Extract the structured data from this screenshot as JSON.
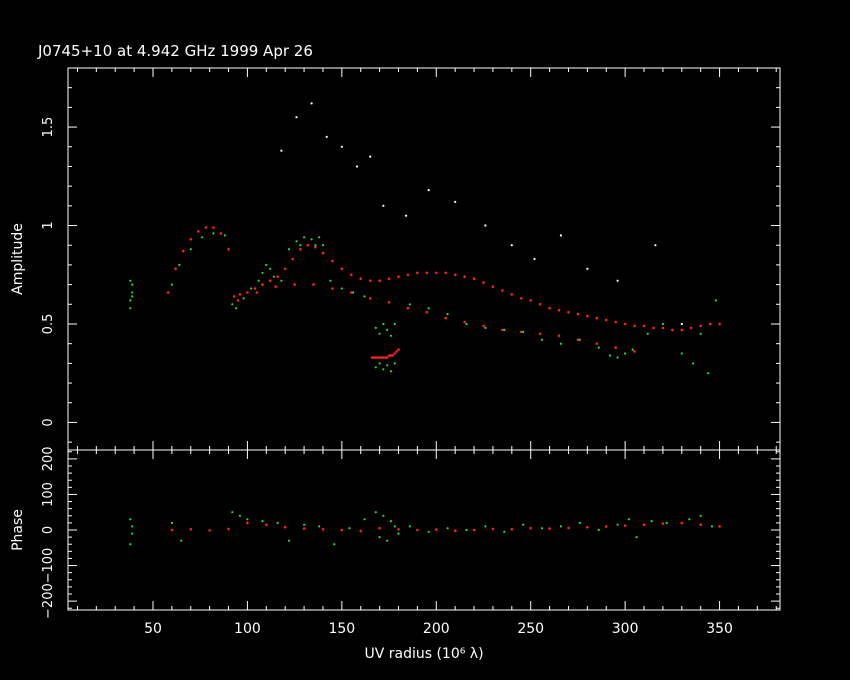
{
  "title": "J0745+10 at 4.942 GHz 1999 Apr 26",
  "colors": {
    "background": "#000000",
    "axes": "#ffffff",
    "model": "#ff2020",
    "data": "#20e040"
  },
  "chart_data": [
    {
      "type": "scatter",
      "panel": "amplitude",
      "ylabel": "Amplitude",
      "xlim": [
        5,
        382
      ],
      "ylim": [
        -0.14,
        1.8
      ],
      "x_ticks": [
        50,
        100,
        150,
        200,
        250,
        300,
        350
      ],
      "y_ticks": [
        0,
        0.5,
        1,
        1.5
      ],
      "y_tick_labels": [
        "0",
        "0.5",
        "1",
        "1.5"
      ],
      "series": [
        {
          "role": "model",
          "color": "#ff2020",
          "x": [
            58,
            62,
            66,
            70,
            74,
            78,
            82,
            86,
            90,
            93,
            96,
            100,
            104,
            108,
            112,
            116,
            120,
            124,
            128,
            132,
            136,
            140,
            145,
            150,
            155,
            160,
            165,
            170,
            175,
            180,
            185,
            190,
            195,
            200,
            205,
            210,
            215,
            220,
            225,
            230,
            235,
            240,
            245,
            250,
            255,
            260,
            265,
            270,
            275,
            280,
            285,
            290,
            295,
            300,
            305,
            310,
            315,
            320,
            325,
            330,
            335,
            340,
            345,
            350
          ],
          "y": [
            0.66,
            0.78,
            0.87,
            0.93,
            0.97,
            0.99,
            0.99,
            0.96,
            0.88,
            0.64,
            0.65,
            0.66,
            0.68,
            0.7,
            0.72,
            0.74,
            0.78,
            0.83,
            0.88,
            0.9,
            0.89,
            0.86,
            0.82,
            0.78,
            0.75,
            0.73,
            0.72,
            0.72,
            0.73,
            0.74,
            0.75,
            0.76,
            0.76,
            0.76,
            0.76,
            0.75,
            0.74,
            0.73,
            0.71,
            0.69,
            0.67,
            0.65,
            0.63,
            0.62,
            0.6,
            0.58,
            0.57,
            0.56,
            0.55,
            0.54,
            0.53,
            0.52,
            0.51,
            0.5,
            0.49,
            0.49,
            0.48,
            0.48,
            0.47,
            0.47,
            0.48,
            0.49,
            0.5,
            0.5
          ]
        },
        {
          "role": "model-lower",
          "color": "#ff2020",
          "x": [
            95,
            105,
            115,
            125,
            135,
            145,
            155,
            165,
            175,
            185,
            195,
            205,
            215,
            225,
            235,
            245,
            255,
            265,
            275,
            285,
            295,
            305
          ],
          "y": [
            0.62,
            0.66,
            0.69,
            0.7,
            0.7,
            0.68,
            0.66,
            0.63,
            0.61,
            0.58,
            0.56,
            0.53,
            0.51,
            0.49,
            0.47,
            0.46,
            0.45,
            0.44,
            0.42,
            0.4,
            0.38,
            0.36
          ]
        },
        {
          "role": "model-cluster",
          "color": "#ff2020",
          "x": [
            166,
            167,
            168,
            169,
            170,
            171,
            172,
            173,
            174,
            175,
            176,
            177,
            178,
            179,
            180
          ],
          "y": [
            0.33,
            0.33,
            0.33,
            0.33,
            0.33,
            0.33,
            0.33,
            0.33,
            0.33,
            0.34,
            0.34,
            0.34,
            0.35,
            0.36,
            0.37
          ]
        },
        {
          "role": "data",
          "color": "#20e040",
          "x": [
            38,
            38,
            39,
            39,
            38,
            39,
            60,
            64,
            70,
            76,
            82,
            88,
            92,
            94,
            98,
            102,
            106,
            108,
            110,
            112,
            114,
            118,
            122,
            126,
            128,
            130,
            134,
            136,
            138,
            140,
            144,
            150,
            156,
            162,
            168,
            170,
            172,
            174,
            176,
            178,
            168,
            170,
            172,
            174,
            176,
            178,
            186,
            196,
            206,
            216,
            226,
            236,
            246,
            256,
            266,
            276,
            286,
            292,
            296,
            300,
            304,
            312,
            320,
            330,
            336,
            340,
            344,
            348
          ],
          "y": [
            0.58,
            0.62,
            0.66,
            0.7,
            0.72,
            0.64,
            0.7,
            0.8,
            0.88,
            0.94,
            0.96,
            0.95,
            0.6,
            0.58,
            0.63,
            0.68,
            0.72,
            0.76,
            0.8,
            0.78,
            0.74,
            0.72,
            0.88,
            0.92,
            0.9,
            0.94,
            0.93,
            0.9,
            0.94,
            0.9,
            0.72,
            0.68,
            0.66,
            0.64,
            0.48,
            0.45,
            0.5,
            0.47,
            0.44,
            0.5,
            0.28,
            0.3,
            0.27,
            0.29,
            0.26,
            0.3,
            0.6,
            0.58,
            0.55,
            0.5,
            0.48,
            0.47,
            0.46,
            0.42,
            0.4,
            0.42,
            0.38,
            0.34,
            0.33,
            0.35,
            0.37,
            0.45,
            0.5,
            0.35,
            0.3,
            0.45,
            0.25,
            0.62
          ]
        },
        {
          "role": "outliers",
          "color": "#ffffff",
          "x": [
            118,
            126,
            134,
            142,
            150,
            158,
            165,
            172,
            184,
            196,
            210,
            226,
            240,
            252,
            266,
            280,
            296,
            316,
            330
          ],
          "y": [
            1.38,
            1.55,
            1.62,
            1.45,
            1.4,
            1.3,
            1.35,
            1.1,
            1.05,
            1.18,
            1.12,
            1.0,
            0.9,
            0.83,
            0.95,
            0.78,
            0.72,
            0.9,
            0.5
          ]
        }
      ]
    },
    {
      "type": "scatter",
      "panel": "phase",
      "xlabel": "UV radius  (10⁶ λ)",
      "ylabel": "Phase",
      "xlim": [
        5,
        382
      ],
      "ylim": [
        -225,
        225
      ],
      "x_ticks": [
        50,
        100,
        150,
        200,
        250,
        300,
        350
      ],
      "x_tick_labels": [
        "50",
        "100",
        "150",
        "200",
        "250",
        "300",
        "350"
      ],
      "y_ticks": [
        -200,
        -100,
        0,
        100,
        200
      ],
      "y_tick_labels": [
        "−200",
        "−100",
        "0",
        "100",
        "200"
      ],
      "series": [
        {
          "role": "model",
          "color": "#ff2020",
          "x": [
            60,
            70,
            80,
            90,
            100,
            110,
            120,
            130,
            140,
            150,
            160,
            170,
            180,
            190,
            200,
            210,
            220,
            230,
            240,
            250,
            260,
            270,
            280,
            290,
            300,
            310,
            320,
            330,
            340,
            350
          ],
          "y": [
            0,
            2,
            -1,
            3,
            20,
            15,
            8,
            4,
            2,
            0,
            -3,
            5,
            2,
            0,
            1,
            -2,
            0,
            3,
            2,
            5,
            4,
            6,
            8,
            10,
            12,
            15,
            18,
            20,
            15,
            10
          ]
        },
        {
          "role": "data",
          "color": "#20e040",
          "x": [
            38,
            38,
            39,
            39,
            60,
            65,
            92,
            96,
            100,
            108,
            116,
            122,
            130,
            138,
            146,
            154,
            162,
            168,
            170,
            172,
            174,
            176,
            178,
            180,
            186,
            196,
            206,
            216,
            226,
            236,
            246,
            256,
            266,
            276,
            286,
            296,
            302,
            306,
            314,
            322,
            334,
            340,
            346
          ],
          "y": [
            -40,
            30,
            -10,
            10,
            20,
            -30,
            50,
            40,
            30,
            25,
            20,
            -30,
            15,
            10,
            -40,
            5,
            30,
            50,
            -20,
            40,
            -30,
            25,
            10,
            -10,
            10,
            -5,
            5,
            0,
            10,
            -5,
            15,
            5,
            10,
            20,
            0,
            15,
            30,
            -20,
            25,
            20,
            30,
            40,
            10
          ]
        }
      ]
    }
  ]
}
